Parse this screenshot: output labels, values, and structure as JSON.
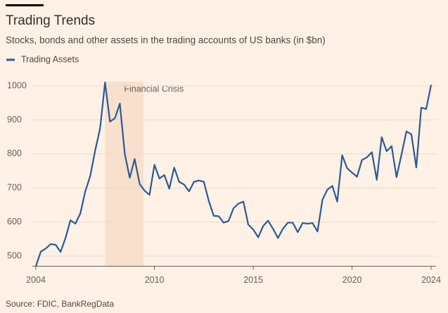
{
  "chart_data": {
    "type": "line",
    "title": "Trading Trends",
    "subtitle": "Stocks, bonds and other assets in the trading accounts of US banks (in $bn)",
    "source": "Source: FDIC, BankRegData",
    "annotation": {
      "text": "Financial Crisis",
      "x0": 2007.5,
      "x1": 2009.45
    },
    "legend": "top-left",
    "grid": true,
    "xlim": [
      2004,
      2024
    ],
    "xticks": [
      2004,
      2010,
      2015,
      2020,
      2024
    ],
    "ylim": [
      470,
      1025
    ],
    "yticks": [
      500,
      600,
      700,
      800,
      900,
      1000
    ],
    "x": [
      2004,
      2004.25,
      2004.5,
      2004.75,
      2005,
      2005.25,
      2005.5,
      2005.75,
      2006,
      2006.25,
      2006.5,
      2006.75,
      2007,
      2007.25,
      2007.5,
      2007.75,
      2008,
      2008.25,
      2008.5,
      2008.75,
      2009,
      2009.25,
      2009.5,
      2009.75,
      2010,
      2010.25,
      2010.5,
      2010.75,
      2011,
      2011.25,
      2011.5,
      2011.75,
      2012,
      2012.25,
      2012.5,
      2012.75,
      2013,
      2013.25,
      2013.5,
      2013.75,
      2014,
      2014.25,
      2014.5,
      2014.75,
      2015,
      2015.25,
      2015.5,
      2015.75,
      2016,
      2016.25,
      2016.5,
      2016.75,
      2017,
      2017.25,
      2017.5,
      2017.75,
      2018,
      2018.25,
      2018.5,
      2018.75,
      2019,
      2019.25,
      2019.5,
      2019.75,
      2020,
      2020.25,
      2020.5,
      2020.75,
      2021,
      2021.25,
      2021.5,
      2021.75,
      2022,
      2022.25,
      2022.5,
      2022.75,
      2023,
      2023.25,
      2023.5,
      2023.75,
      2024
    ],
    "series": [
      {
        "name": "Trading Assets",
        "color": "#2b5a95",
        "values": [
          470,
          513,
          522,
          535,
          533,
          512,
          553,
          605,
          595,
          625,
          690,
          735,
          810,
          875,
          1010,
          895,
          905,
          948,
          800,
          730,
          785,
          712,
          692,
          680,
          768,
          728,
          738,
          698,
          760,
          718,
          710,
          690,
          718,
          722,
          718,
          662,
          618,
          617,
          598,
          603,
          640,
          654,
          660,
          592,
          578,
          555,
          588,
          604,
          580,
          553,
          580,
          598,
          598,
          570,
          597,
          595,
          597,
          572,
          665,
          695,
          706,
          660,
          796,
          758,
          745,
          733,
          782,
          790,
          805,
          724,
          849,
          808,
          823,
          732,
          798,
          866,
          858,
          760,
          936,
          932,
          1003
        ]
      }
    ]
  }
}
